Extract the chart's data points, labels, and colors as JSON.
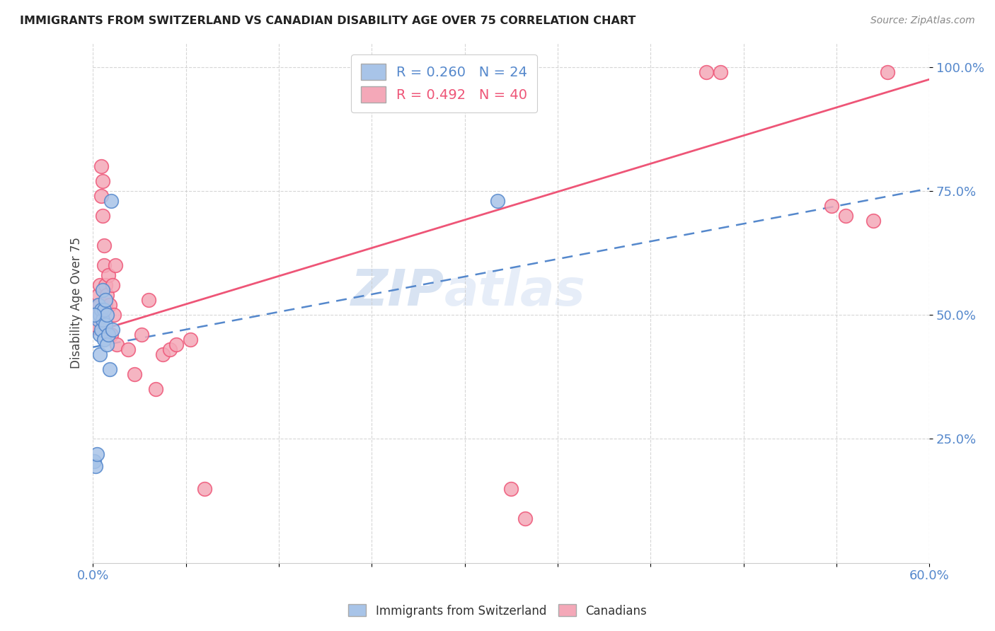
{
  "title": "IMMIGRANTS FROM SWITZERLAND VS CANADIAN DISABILITY AGE OVER 75 CORRELATION CHART",
  "source": "Source: ZipAtlas.com",
  "ylabel": "Disability Age Over 75",
  "xmin": 0.0,
  "xmax": 0.6,
  "ymin": 0.0,
  "ymax": 1.05,
  "yticks": [
    0.25,
    0.5,
    0.75,
    1.0
  ],
  "ytick_labels": [
    "25.0%",
    "50.0%",
    "75.0%",
    "100.0%"
  ],
  "blue_color": "#a8c4e8",
  "pink_color": "#f4a8b8",
  "blue_line_color": "#5588cc",
  "pink_line_color": "#ee5577",
  "watermark_text": "ZIP",
  "watermark_text2": "atlas",
  "legend_blue_label": "R = 0.260   N = 24",
  "legend_pink_label": "R = 0.492   N = 40",
  "bottom_legend_blue": "Immigrants from Switzerland",
  "bottom_legend_pink": "Canadians",
  "blue_line_x0": 0.0,
  "blue_line_y0": 0.435,
  "blue_line_x1": 0.6,
  "blue_line_y1": 0.755,
  "pink_line_x0": 0.0,
  "pink_line_y0": 0.465,
  "pink_line_x1": 0.6,
  "pink_line_y1": 0.975,
  "blue_scatter_x": [
    0.001,
    0.002,
    0.003,
    0.004,
    0.004,
    0.005,
    0.005,
    0.005,
    0.006,
    0.006,
    0.007,
    0.007,
    0.008,
    0.008,
    0.009,
    0.009,
    0.01,
    0.01,
    0.011,
    0.012,
    0.013,
    0.014,
    0.29,
    0.001
  ],
  "blue_scatter_y": [
    0.205,
    0.195,
    0.22,
    0.49,
    0.52,
    0.5,
    0.46,
    0.42,
    0.51,
    0.47,
    0.55,
    0.49,
    0.51,
    0.45,
    0.53,
    0.48,
    0.44,
    0.5,
    0.46,
    0.39,
    0.73,
    0.47,
    0.73,
    0.5
  ],
  "pink_scatter_x": [
    0.001,
    0.002,
    0.003,
    0.004,
    0.005,
    0.005,
    0.006,
    0.006,
    0.007,
    0.007,
    0.008,
    0.008,
    0.009,
    0.009,
    0.01,
    0.011,
    0.012,
    0.013,
    0.014,
    0.015,
    0.016,
    0.017,
    0.025,
    0.03,
    0.035,
    0.04,
    0.045,
    0.05,
    0.055,
    0.06,
    0.07,
    0.08,
    0.3,
    0.31,
    0.44,
    0.45,
    0.53,
    0.54,
    0.56,
    0.57
  ],
  "pink_scatter_y": [
    0.475,
    0.48,
    0.5,
    0.54,
    0.52,
    0.56,
    0.8,
    0.74,
    0.77,
    0.7,
    0.6,
    0.64,
    0.56,
    0.52,
    0.54,
    0.58,
    0.52,
    0.46,
    0.56,
    0.5,
    0.6,
    0.44,
    0.43,
    0.38,
    0.46,
    0.53,
    0.35,
    0.42,
    0.43,
    0.44,
    0.45,
    0.15,
    0.15,
    0.09,
    0.99,
    0.99,
    0.72,
    0.7,
    0.69,
    0.99
  ]
}
